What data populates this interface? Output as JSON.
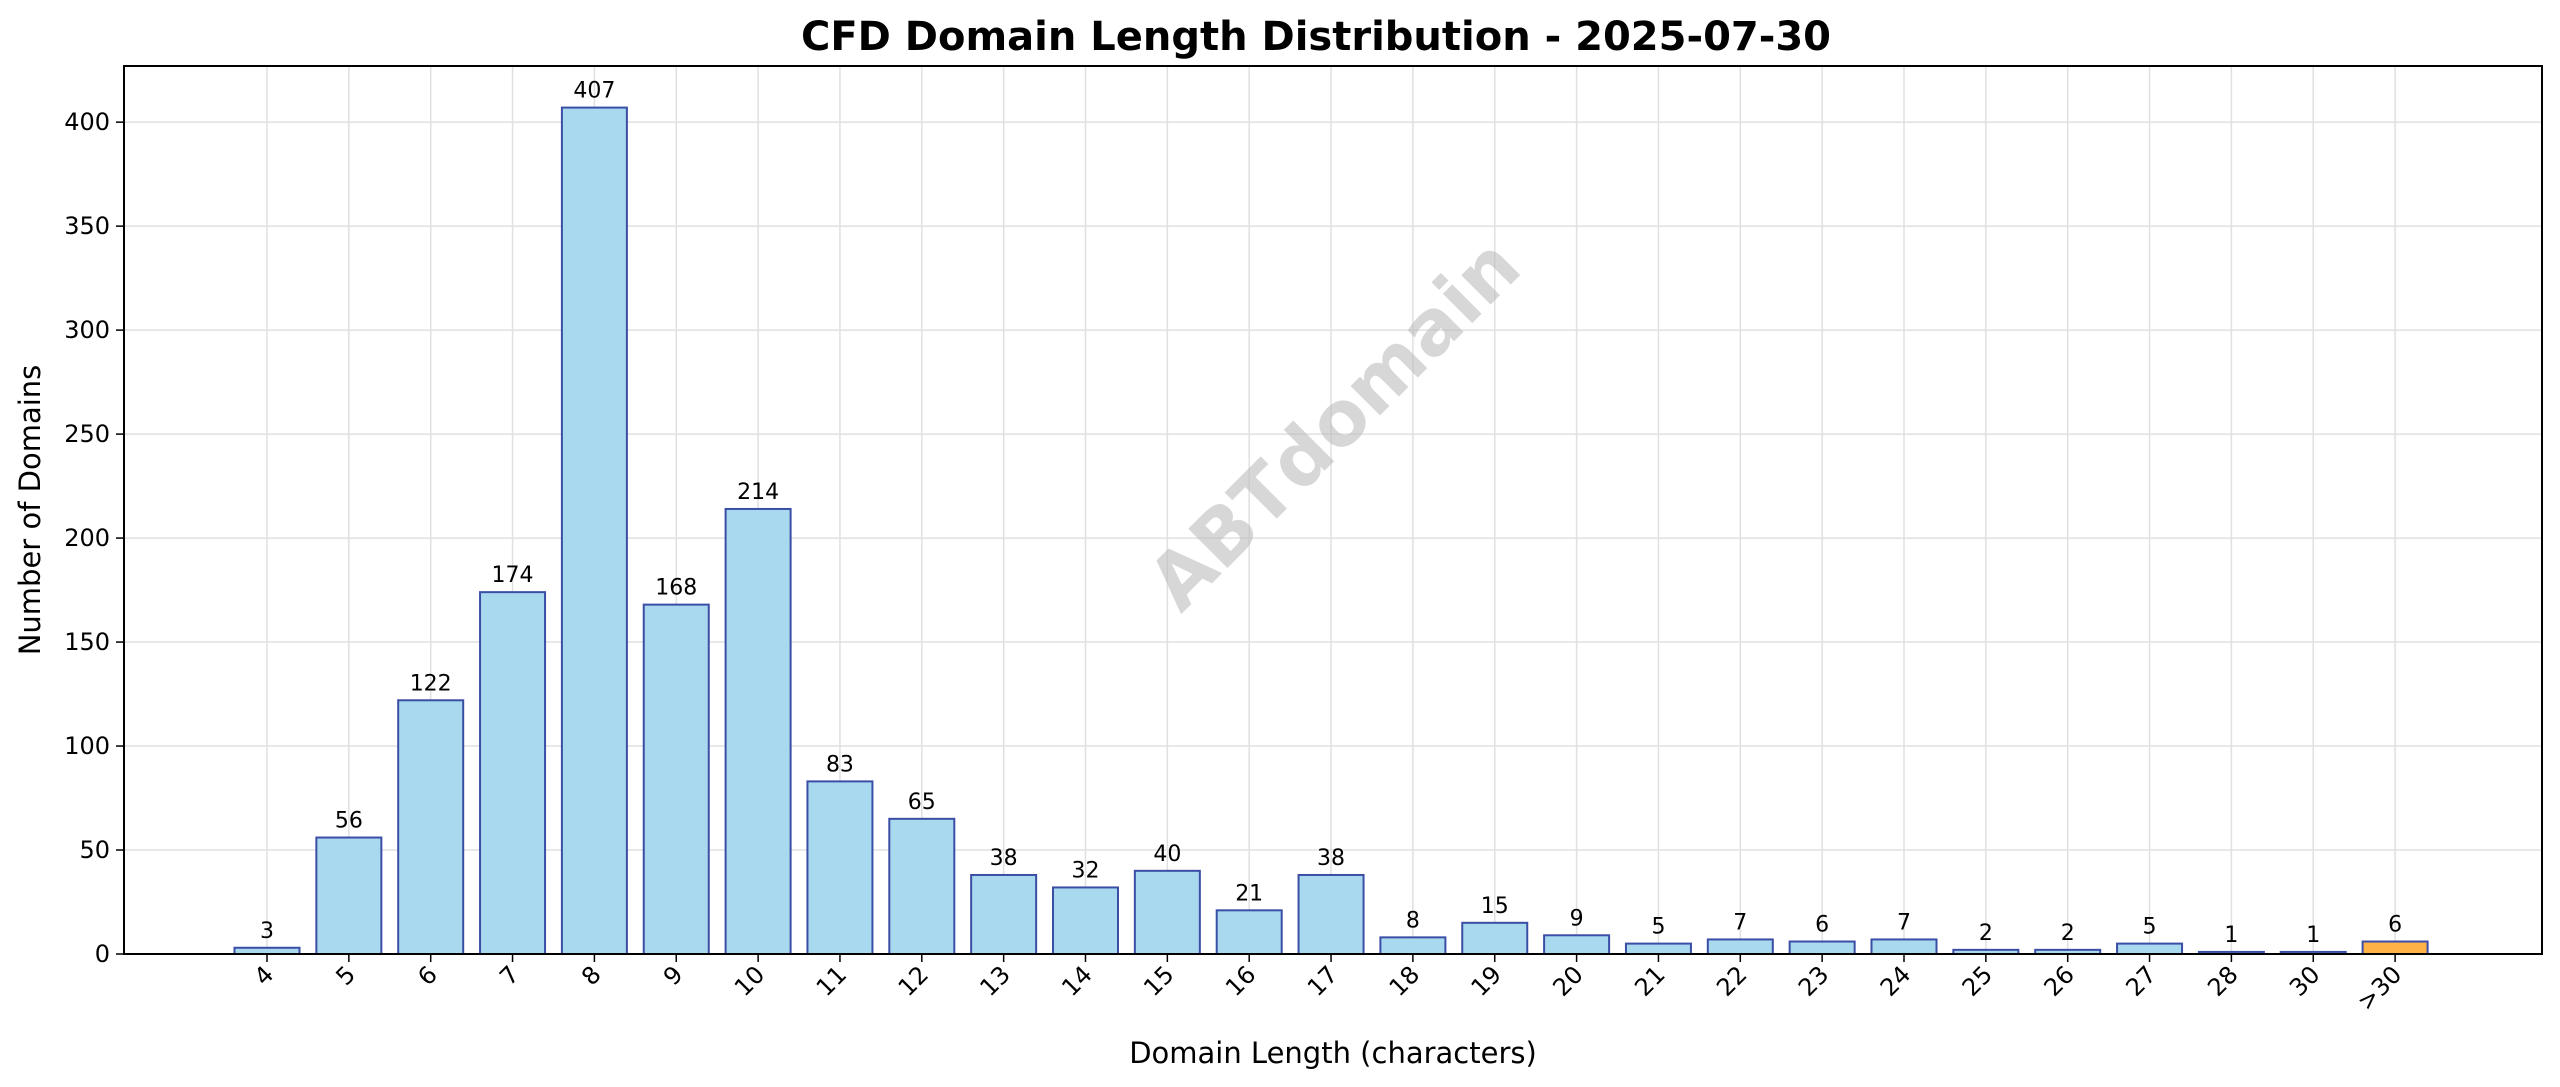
{
  "chart_data": {
    "type": "bar",
    "title": "CFD Domain Length Distribution - 2025-07-30",
    "xlabel": "Domain Length (characters)",
    "ylabel": "Number of Domains",
    "categories": [
      "4",
      "5",
      "6",
      "7",
      "8",
      "9",
      "10",
      "11",
      "12",
      "13",
      "14",
      "15",
      "16",
      "17",
      "18",
      "19",
      "20",
      "21",
      "22",
      "23",
      "24",
      "25",
      "26",
      "27",
      "28",
      "30",
      ">30"
    ],
    "values": [
      3,
      56,
      122,
      174,
      407,
      168,
      214,
      83,
      65,
      38,
      32,
      40,
      21,
      38,
      8,
      15,
      9,
      5,
      7,
      6,
      7,
      2,
      2,
      5,
      1,
      1,
      6
    ],
    "ylim": [
      0,
      427
    ],
    "yticks": [
      0,
      50,
      100,
      150,
      200,
      250,
      300,
      350,
      400
    ],
    "grid": true,
    "watermark": "ABTdomain",
    "colors": {
      "bar_fill": "#a9d9ee",
      "bar_stroke": "#3b4ea6",
      "highlight_fill": "#ffb347",
      "highlight_stroke": "#3b4ea6"
    },
    "highlight_category": ">30"
  }
}
